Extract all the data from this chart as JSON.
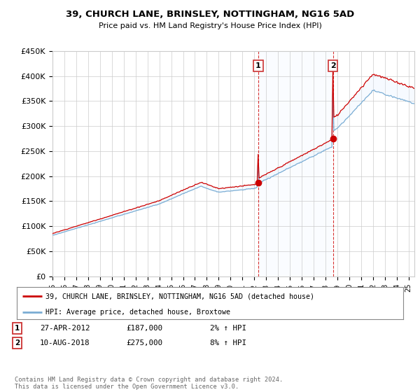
{
  "title": "39, CHURCH LANE, BRINSLEY, NOTTINGHAM, NG16 5AD",
  "subtitle": "Price paid vs. HM Land Registry's House Price Index (HPI)",
  "ylabel_ticks": [
    "£0",
    "£50K",
    "£100K",
    "£150K",
    "£200K",
    "£250K",
    "£300K",
    "£350K",
    "£400K",
    "£450K"
  ],
  "ytick_values": [
    0,
    50000,
    100000,
    150000,
    200000,
    250000,
    300000,
    350000,
    400000,
    450000
  ],
  "ylim": [
    0,
    450000
  ],
  "xlim_start": 1995.0,
  "xlim_end": 2025.5,
  "legend_line1": "39, CHURCH LANE, BRINSLEY, NOTTINGHAM, NG16 5AD (detached house)",
  "legend_line2": "HPI: Average price, detached house, Broxtowe",
  "sale1_date": "27-APR-2012",
  "sale1_price": "£187,000",
  "sale1_hpi": "2% ↑ HPI",
  "sale2_date": "10-AUG-2018",
  "sale2_price": "£275,000",
  "sale2_hpi": "8% ↑ HPI",
  "footer": "Contains HM Land Registry data © Crown copyright and database right 2024.\nThis data is licensed under the Open Government Licence v3.0.",
  "line_color_red": "#cc0000",
  "line_color_blue": "#7aadd4",
  "fill_color": "#ddeeff",
  "bg_color": "#ffffff",
  "grid_color": "#cccccc",
  "sale1_x": 2012.33,
  "sale1_y": 187000,
  "sale2_x": 2018.62,
  "sale2_y": 275000,
  "xtick_years": [
    1995,
    1996,
    1997,
    1998,
    1999,
    2000,
    2001,
    2002,
    2003,
    2004,
    2005,
    2006,
    2007,
    2008,
    2009,
    2010,
    2011,
    2012,
    2013,
    2014,
    2015,
    2016,
    2017,
    2018,
    2019,
    2020,
    2021,
    2022,
    2023,
    2024,
    2025
  ]
}
